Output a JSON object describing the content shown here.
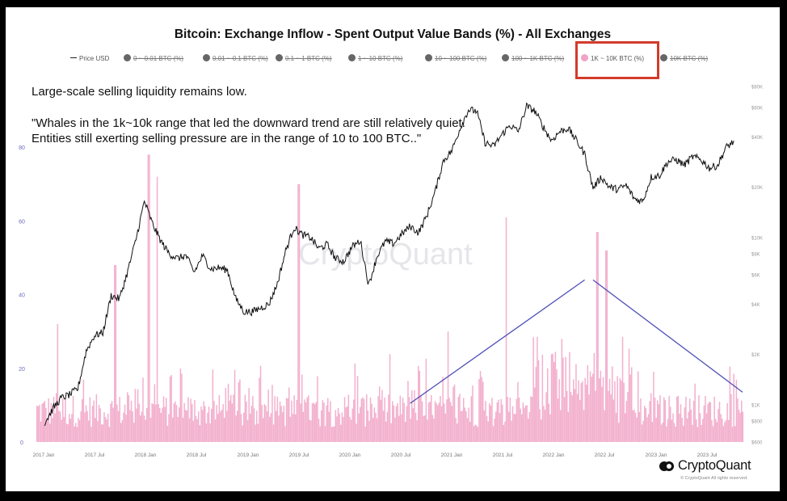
{
  "title": "Bitcoin: Exchange Inflow - Spent Output Value Bands (%) - All Exchanges",
  "legend": [
    {
      "label": "Price USD",
      "kind": "line",
      "active": true
    },
    {
      "label": "0 ~ 0.01 BTC (%)",
      "kind": "dot",
      "active": false
    },
    {
      "label": "0.01 ~ 0.1 BTC (%)",
      "kind": "dot",
      "active": false
    },
    {
      "label": "0.1 ~ 1 BTC (%)",
      "kind": "dot",
      "active": false
    },
    {
      "label": "1 ~ 10 BTC (%)",
      "kind": "dot",
      "active": false
    },
    {
      "label": "10 ~ 100 BTC (%)",
      "kind": "dot",
      "active": false
    },
    {
      "label": "100 ~ 1K BTC (%)",
      "kind": "dot",
      "active": false
    },
    {
      "label": "1K ~ 10K BTC (%)",
      "kind": "dot",
      "active": true
    },
    {
      "label": "10K BTC (%)",
      "kind": "dot",
      "active": false
    }
  ],
  "annotation": {
    "line1": "Large-scale selling liquidity remains low.",
    "line2": "\"Whales in the 1k~10k range that led the downward trend are still relatively quiet. Entities still exerting selling pressure are in the range of 10 to 100 BTC..\""
  },
  "watermark": "CryptoQuant",
  "brand": "CryptoQuant",
  "copyright": "© CryptoQuant All rights reserved.",
  "colors": {
    "bars": "#f2a7c9",
    "price": "#111111",
    "trend_lines": "#4e4fb8",
    "highlight_box": "#d33b2b",
    "left_axis_text": "#6b6bc0",
    "right_axis_text": "#999999"
  },
  "chart_data": {
    "type": "bar+line",
    "x_ticks": [
      "2017 Jan",
      "2017 Jul",
      "2018 Jan",
      "2018 Jul",
      "2019 Jan",
      "2019 Jul",
      "2020 Jan",
      "2020 Jul",
      "2021 Jan",
      "2021 Jul",
      "2022 Jan",
      "2022 Jul",
      "2023 Jan",
      "2023 Jul"
    ],
    "x_range": [
      "2016-11",
      "2023-12"
    ],
    "left_axis": {
      "ticks": [
        "0",
        "20",
        "40",
        "60",
        "80"
      ],
      "range": [
        0,
        100
      ],
      "unit": "%"
    },
    "right_axis": {
      "scale": "log",
      "ticks": [
        "$600",
        "$800",
        "$1K",
        "$2K",
        "$4K",
        "$6K",
        "$8K",
        "$10K",
        "$20K",
        "$40K",
        "$60K",
        "$80K"
      ]
    },
    "price_series": {
      "name": "Price USD",
      "points": [
        [
          "2016-12",
          780
        ],
        [
          "2017-01",
          950
        ],
        [
          "2017-02",
          1100
        ],
        [
          "2017-03",
          1150
        ],
        [
          "2017-04",
          1250
        ],
        [
          "2017-05",
          2100
        ],
        [
          "2017-06",
          2600
        ],
        [
          "2017-07",
          2700
        ],
        [
          "2017-08",
          4500
        ],
        [
          "2017-09",
          4300
        ],
        [
          "2017-10",
          6300
        ],
        [
          "2017-11",
          9800
        ],
        [
          "2017-12",
          16500
        ],
        [
          "2018-01",
          12000
        ],
        [
          "2018-02",
          9500
        ],
        [
          "2018-03",
          8000
        ],
        [
          "2018-04",
          7500
        ],
        [
          "2018-05",
          7800
        ],
        [
          "2018-06",
          6200
        ],
        [
          "2018-07",
          7800
        ],
        [
          "2018-08",
          6500
        ],
        [
          "2018-09",
          6600
        ],
        [
          "2018-10",
          6400
        ],
        [
          "2018-11",
          4300
        ],
        [
          "2018-12",
          3600
        ],
        [
          "2019-01",
          3600
        ],
        [
          "2019-02",
          3800
        ],
        [
          "2019-03",
          4000
        ],
        [
          "2019-04",
          5300
        ],
        [
          "2019-05",
          8300
        ],
        [
          "2019-06",
          11500
        ],
        [
          "2019-07",
          10400
        ],
        [
          "2019-08",
          10000
        ],
        [
          "2019-09",
          8600
        ],
        [
          "2019-10",
          9100
        ],
        [
          "2019-11",
          7500
        ],
        [
          "2019-12",
          7200
        ],
        [
          "2020-01",
          8800
        ],
        [
          "2020-02",
          9600
        ],
        [
          "2020-03",
          5200
        ],
        [
          "2020-04",
          7700
        ],
        [
          "2020-05",
          9500
        ],
        [
          "2020-06",
          9200
        ],
        [
          "2020-07",
          10500
        ],
        [
          "2020-08",
          11700
        ],
        [
          "2020-09",
          10700
        ],
        [
          "2020-10",
          13500
        ],
        [
          "2020-11",
          18800
        ],
        [
          "2020-12",
          28900
        ],
        [
          "2021-01",
          33000
        ],
        [
          "2021-02",
          45000
        ],
        [
          "2021-03",
          58000
        ],
        [
          "2021-04",
          57000
        ],
        [
          "2021-05",
          37000
        ],
        [
          "2021-06",
          35000
        ],
        [
          "2021-07",
          41000
        ],
        [
          "2021-08",
          47000
        ],
        [
          "2021-09",
          43000
        ],
        [
          "2021-10",
          61000
        ],
        [
          "2021-11",
          57000
        ],
        [
          "2021-12",
          46000
        ],
        [
          "2022-01",
          38000
        ],
        [
          "2022-02",
          43000
        ],
        [
          "2022-03",
          45000
        ],
        [
          "2022-04",
          38000
        ],
        [
          "2022-05",
          31500
        ],
        [
          "2022-06",
          19800
        ],
        [
          "2022-07",
          23000
        ],
        [
          "2022-08",
          20000
        ],
        [
          "2022-09",
          19400
        ],
        [
          "2022-10",
          20500
        ],
        [
          "2022-11",
          17000
        ],
        [
          "2022-12",
          16500
        ],
        [
          "2023-01",
          23000
        ],
        [
          "2023-02",
          23500
        ],
        [
          "2023-03",
          28400
        ],
        [
          "2023-04",
          29200
        ],
        [
          "2023-05",
          27200
        ],
        [
          "2023-06",
          30400
        ],
        [
          "2023-07",
          29200
        ],
        [
          "2023-08",
          26000
        ],
        [
          "2023-09",
          27000
        ],
        [
          "2023-10",
          34500
        ],
        [
          "2023-11",
          37700
        ]
      ]
    },
    "bar_series": {
      "name": "1K ~ 10K BTC (%)",
      "peaks": [
        [
          "2017-12",
          78
        ],
        [
          "2018-01",
          72
        ],
        [
          "2019-06",
          70
        ],
        [
          "2017-01",
          32
        ],
        [
          "2017-08",
          48
        ],
        [
          "2020-12",
          30
        ],
        [
          "2021-07",
          61
        ],
        [
          "2022-06",
          57
        ],
        [
          "2022-07",
          52
        ],
        [
          "2023-12",
          30
        ]
      ],
      "typical_range": [
        3,
        22
      ]
    },
    "trend_lines": [
      {
        "from": [
          "2020-08",
          10.5
        ],
        "to": [
          "2022-05",
          44
        ]
      },
      {
        "from": [
          "2022-06",
          44
        ],
        "to": [
          "2023-12",
          13.5
        ]
      }
    ]
  }
}
